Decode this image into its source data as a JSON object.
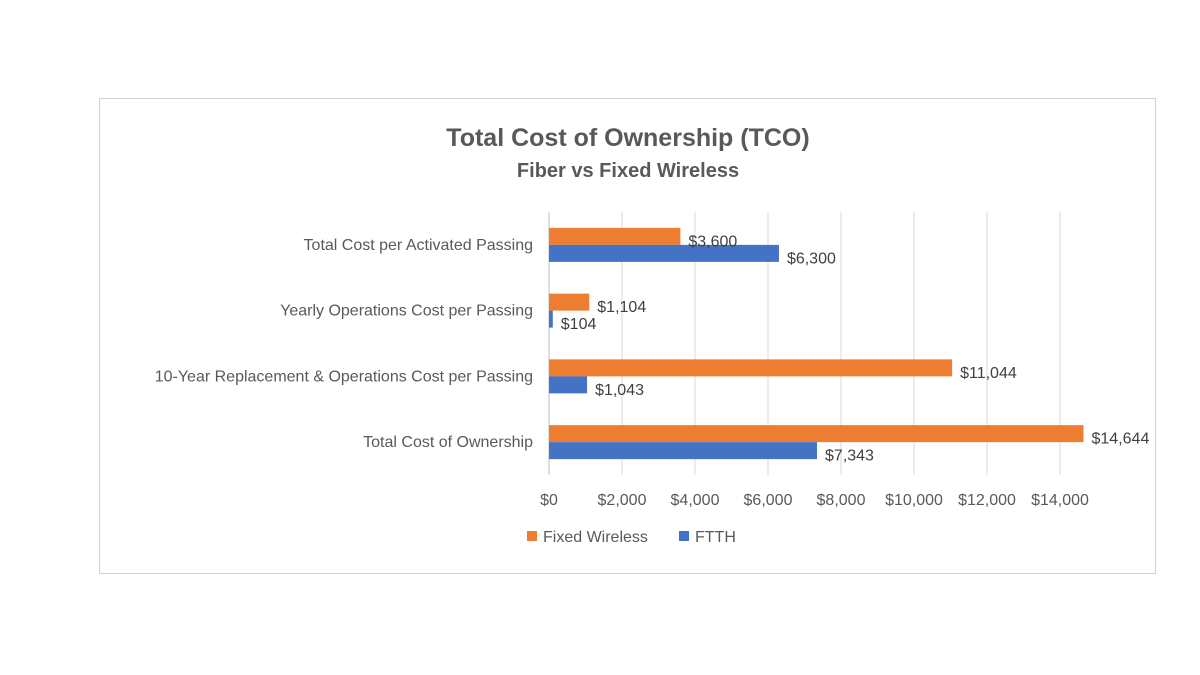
{
  "chart_data": {
    "type": "bar",
    "orientation": "horizontal",
    "title": "Total Cost of Ownership (TCO)",
    "subtitle": "Fiber vs Fixed Wireless",
    "categories": [
      "Total Cost per Activated Passing",
      "Yearly Operations Cost per Passing",
      "10-Year Replacement & Operations Cost per Passing",
      "Total Cost of Ownership"
    ],
    "series": [
      {
        "name": "Fixed Wireless",
        "color": "#ED7D31",
        "values": [
          3600,
          1104,
          11044,
          14644
        ],
        "labels": [
          "$3,600",
          "$1,104",
          "$11,044",
          "$14,644"
        ]
      },
      {
        "name": "FTTH",
        "color": "#4472C4",
        "values": [
          6300,
          104,
          1043,
          7343
        ],
        "labels": [
          "$6,300",
          "$104",
          "$1,043",
          "$7,343"
        ]
      }
    ],
    "xlim": [
      0,
      14000
    ],
    "ticks": [
      0,
      2000,
      4000,
      6000,
      8000,
      10000,
      12000,
      14000
    ],
    "tick_labels": [
      "$0",
      "$2,000",
      "$4,000",
      "$6,000",
      "$8,000",
      "$10,000",
      "$12,000",
      "$14,000"
    ],
    "grid": true,
    "legend_position": "bottom"
  }
}
